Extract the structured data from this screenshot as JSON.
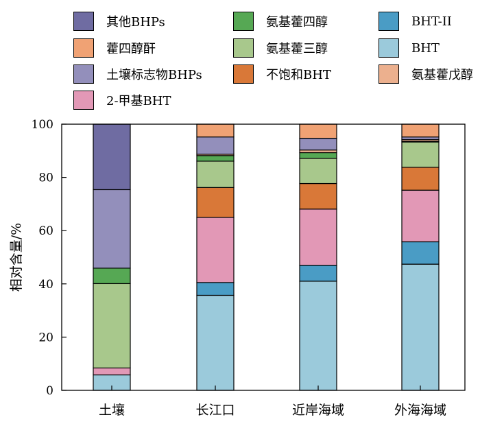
{
  "chart_data": {
    "type": "bar",
    "stacked": true,
    "categories": [
      "土壤",
      "长江口",
      "近岸海域",
      "外海海域"
    ],
    "ylabel": "相对含量/%",
    "xlabel": "",
    "ylim": [
      0,
      100
    ],
    "yticks": [
      0,
      20,
      40,
      60,
      80,
      100
    ],
    "series": [
      {
        "name": "BHT",
        "color": "#9bcadb",
        "values": [
          5.8,
          35.7,
          41.0,
          47.4
        ]
      },
      {
        "name": "BHT-II",
        "color": "#4a9cc5",
        "values": [
          0,
          4.8,
          6.0,
          8.4
        ]
      },
      {
        "name": "2-甲基BHT",
        "color": "#e298b6",
        "values": [
          2.6,
          24.5,
          21.1,
          19.4
        ]
      },
      {
        "name": "不饱和BHT",
        "color": "#d97838",
        "values": [
          0,
          11.2,
          9.6,
          8.6
        ]
      },
      {
        "name": "氨基藿三醇",
        "color": "#a8c88c",
        "values": [
          31.7,
          9.9,
          9.5,
          9.5
        ]
      },
      {
        "name": "氨基藿四醇",
        "color": "#56a854",
        "values": [
          5.8,
          2.1,
          2.1,
          0.3
        ]
      },
      {
        "name": "氨基藿戊醇",
        "color": "#ecb08e",
        "values": [
          0,
          0.5,
          1.0,
          0.6
        ]
      },
      {
        "name": "土壤标志物BHPs",
        "color": "#938fbb",
        "values": [
          29.5,
          6.5,
          4.4,
          1.0
        ]
      },
      {
        "name": "藿四醇酐",
        "color": "#f0a274",
        "values": [
          0,
          4.8,
          5.3,
          4.8
        ]
      },
      {
        "name": "其他BHPs",
        "color": "#6f6ca2",
        "values": [
          24.6,
          0,
          0,
          0
        ]
      }
    ],
    "legend_order": [
      "其他BHPs",
      "氨基藿四醇",
      "BHT-II",
      "藿四醇酐",
      "氨基藿三醇",
      "BHT",
      "土壤标志物BHPs",
      "不饱和BHT",
      "氨基藿戊醇",
      "2-甲基BHT"
    ],
    "legend_placement": "top",
    "grid": false
  }
}
